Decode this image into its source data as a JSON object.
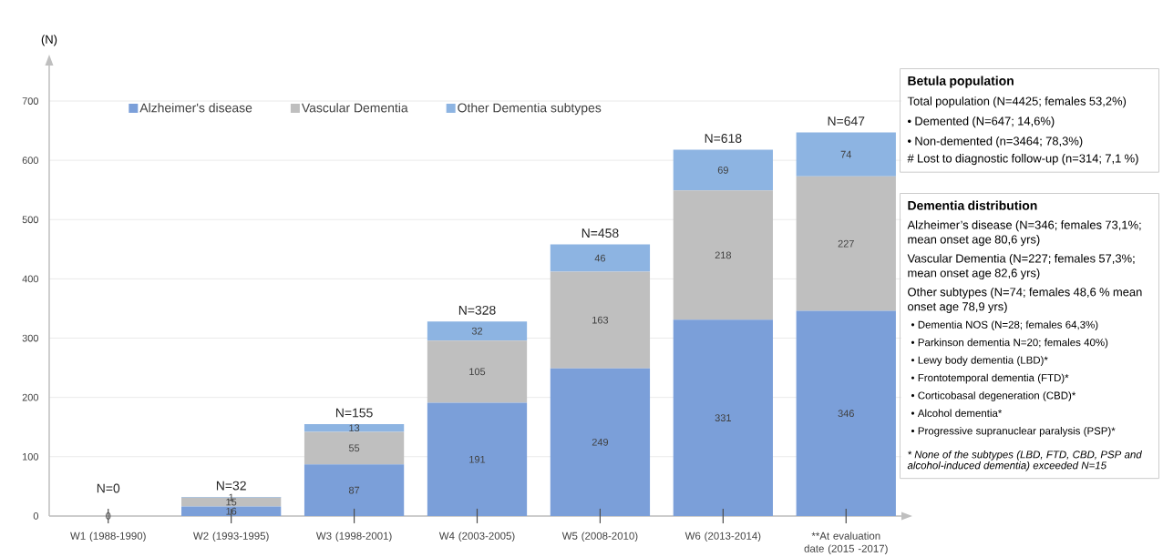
{
  "chart_data": {
    "type": "bar",
    "stacked": true,
    "ylabel": "(N)",
    "categories": [
      "W1 (1988-1990)",
      "W2 (1993-1995)",
      "W3 (1998-2001)",
      "W4 (2003-2005)",
      "W5 (2008-2010)",
      "W6 (2013-2014)",
      "**At evaluation date (2015 -2017)"
    ],
    "series": [
      {
        "name": "Alzheimer's disease",
        "color": "#7b9fd9",
        "values": [
          0,
          16,
          87,
          191,
          249,
          331,
          346
        ],
        "value_labels": [
          "0",
          "16",
          "87",
          "191",
          "249",
          "331",
          "346"
        ]
      },
      {
        "name": "Vascular Dementia",
        "color": "#bfbfbf",
        "values": [
          0,
          15,
          55,
          105,
          163,
          218,
          227
        ],
        "value_labels": [
          null,
          "15",
          "55",
          "105",
          "163",
          "218",
          "227"
        ]
      },
      {
        "name": "Other Dementia subtypes",
        "color": "#8db4e2",
        "values": [
          0,
          1,
          13,
          32,
          46,
          69,
          74
        ],
        "value_labels": [
          null,
          "1",
          "13",
          "32",
          "46",
          "69",
          "74"
        ]
      }
    ],
    "totals": [
      "N=0",
      "N=32",
      "N=155",
      "N=328",
      "N=458",
      "N=618",
      "N=647"
    ],
    "ylim": [
      0,
      760
    ],
    "yticks": [
      0,
      100,
      200,
      300,
      400,
      500,
      600,
      700
    ],
    "grid": "y",
    "legend": "top",
    "annotations": [
      "Betula population",
      "Total population (N=4425; females 53,2%)",
      "• Demented (N=647; 14,6%)",
      "• Non-demented (n=3464; 78,3%)",
      "# Lost to diagnostic follow-up (n=314; 7,1 %)",
      "Dementia distribution",
      "Alzheimer’s disease (N=346; females 73,1%; mean onset age 80,6 yrs)",
      "Vascular Dementia (N=227; females 57,3%; mean onset age 82,6 yrs)",
      "Other subtypes (N=74; females 48,6 % mean onset age 78,9 yrs)",
      "• Dementia NOS (N=28; females 64,3%)",
      "• Parkinson dementia N=20; females 40%)",
      "• Lewy body dementia (LBD)*",
      "• Frontotemporal dementia (FTD)*",
      "• Corticobasal degeneration (CBD)*",
      "• Alcohol dementia*",
      "• Progressive supranuclear paralysis (PSP)*",
      "* None of the subtypes (LBD, FTD, CBD, PSP and alcohol-induced dementia) exceeded N=15"
    ]
  }
}
